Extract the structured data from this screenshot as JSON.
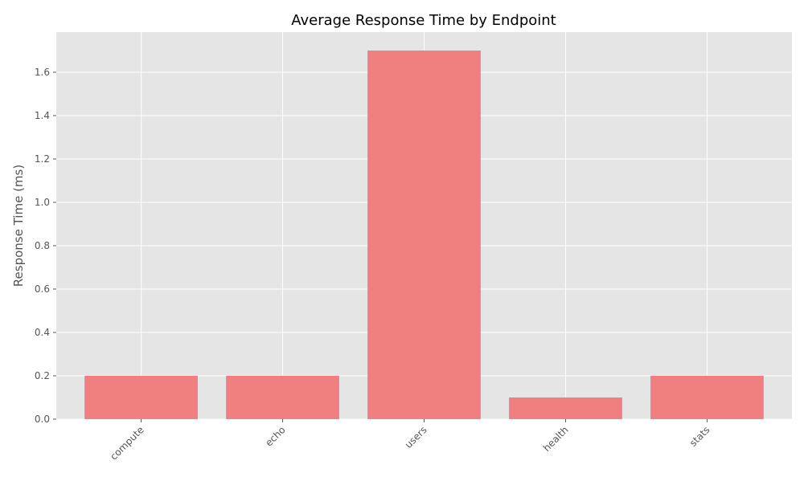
{
  "chart_data": {
    "type": "bar",
    "title": "Average Response Time by Endpoint",
    "xlabel": "",
    "ylabel": "Response Time (ms)",
    "categories": [
      "compute",
      "echo",
      "users",
      "health",
      "stats"
    ],
    "values": [
      0.2,
      0.2,
      1.7,
      0.1,
      0.2
    ],
    "ylim": [
      0,
      1.785
    ],
    "yticks": [
      0.0,
      0.2,
      0.4,
      0.6,
      0.8,
      1.0,
      1.2,
      1.4,
      1.6
    ],
    "ytick_labels": [
      "0.0",
      "0.2",
      "0.4",
      "0.6",
      "0.8",
      "1.0",
      "1.2",
      "1.4",
      "1.6"
    ],
    "grid": true,
    "colors": {
      "bar": "#f08080",
      "plot_background": "#e5e5e5",
      "grid": "#ffffff",
      "text": "#555555",
      "title": "#000000"
    }
  }
}
